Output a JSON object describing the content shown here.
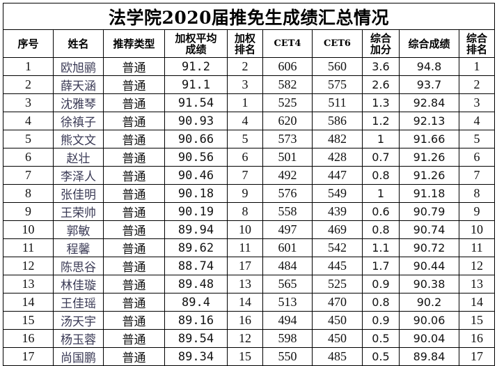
{
  "title": "法学院2020届推免生成绩汇总情况",
  "headers": [
    "序号",
    "姓名",
    "推荐类型",
    "加权平均\n成绩",
    "加权\n排名",
    "CET4",
    "CET6",
    "综合\n加分",
    "综合成绩",
    "综合\n排名"
  ],
  "rows": [
    [
      "1",
      "欧旭鹂",
      "普通",
      "91.2",
      "2",
      "606",
      "560",
      "3.6",
      "94.8",
      "1"
    ],
    [
      "2",
      "薛天涵",
      "普通",
      "91.1",
      "3",
      "582",
      "575",
      "2.6",
      "93.7",
      "2"
    ],
    [
      "3",
      "沈雅琴",
      "普通",
      "91.54",
      "1",
      "525",
      "511",
      "1.3",
      "92.84",
      "3"
    ],
    [
      "4",
      "徐禛子",
      "普通",
      "90.93",
      "4",
      "620",
      "586",
      "1.2",
      "92.13",
      "4"
    ],
    [
      "5",
      "熊文文",
      "普通",
      "90.66",
      "5",
      "573",
      "482",
      "1",
      "91.66",
      "5"
    ],
    [
      "6",
      "赵壮",
      "普通",
      "90.56",
      "6",
      "501",
      "428",
      "0.7",
      "91.26",
      "6"
    ],
    [
      "7",
      "李泽人",
      "普通",
      "90.46",
      "7",
      "492",
      "447",
      "0.8",
      "91.26",
      "7"
    ],
    [
      "8",
      "张佳明",
      "普通",
      "90.18",
      "9",
      "576",
      "549",
      "1",
      "91.18",
      "8"
    ],
    [
      "9",
      "王荣帅",
      "普通",
      "90.19",
      "8",
      "558",
      "439",
      "0.6",
      "90.79",
      "9"
    ],
    [
      "10",
      "郭敏",
      "普通",
      "89.94",
      "10",
      "497",
      "469",
      "0.8",
      "90.74",
      "10"
    ],
    [
      "11",
      "程馨",
      "普通",
      "89.62",
      "11",
      "601",
      "542",
      "1.1",
      "90.72",
      "11"
    ],
    [
      "12",
      "陈思谷",
      "普通",
      "88.74",
      "17",
      "484",
      "445",
      "1.7",
      "90.44",
      "12"
    ],
    [
      "13",
      "林佳璇",
      "普通",
      "89.48",
      "13",
      "565",
      "525",
      "0.9",
      "90.38",
      "13"
    ],
    [
      "14",
      "王佳瑶",
      "普通",
      "89.4",
      "14",
      "513",
      "470",
      "0.8",
      "90.2",
      "14"
    ],
    [
      "15",
      "汤天宇",
      "普通",
      "89.16",
      "16",
      "494",
      "450",
      "0.9",
      "90.06",
      "15"
    ],
    [
      "16",
      "杨玉蓉",
      "普通",
      "89.54",
      "12",
      "598",
      "450",
      "0.5",
      "90.04",
      "16"
    ],
    [
      "17",
      "尚国鹏",
      "普通",
      "89.34",
      "15",
      "550",
      "485",
      "0.5",
      "89.84",
      "17"
    ]
  ]
}
